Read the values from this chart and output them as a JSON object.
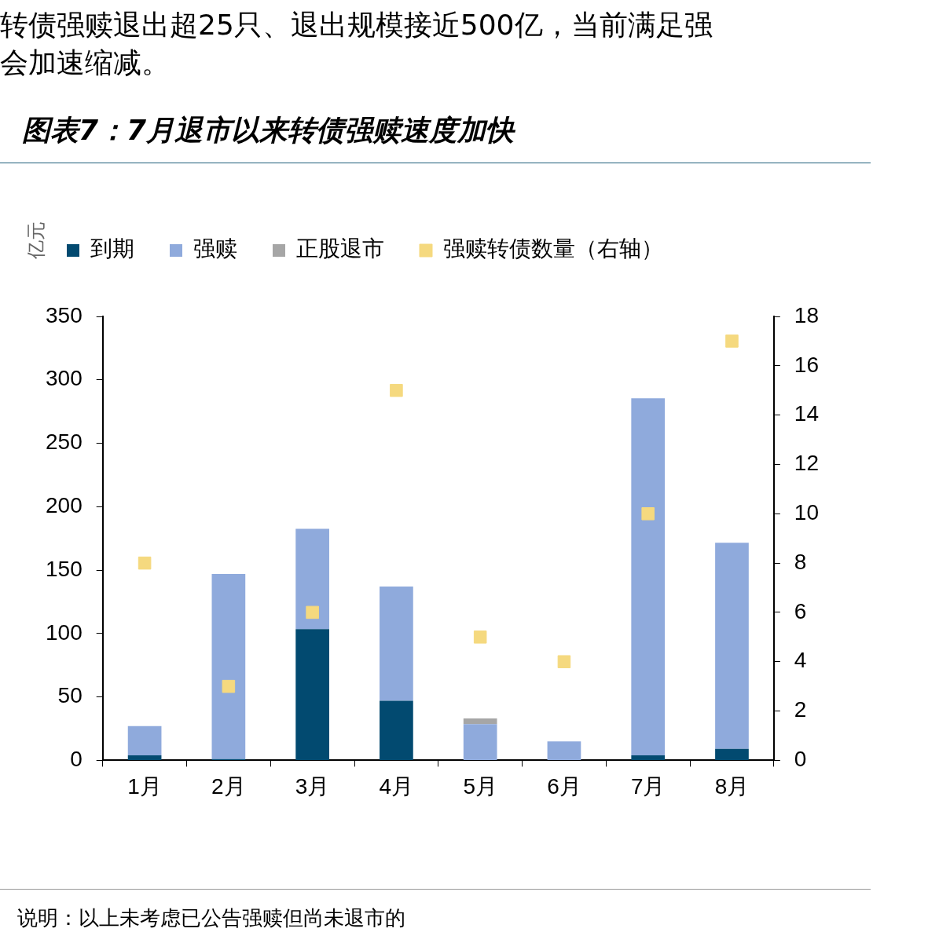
{
  "chart_data": {
    "type": "bar",
    "title": "图表7：7月退市以来转债强赎速度加快",
    "ylabel": "亿元",
    "categories": [
      "1月",
      "2月",
      "3月",
      "4月",
      "5月",
      "6月",
      "7月",
      "8月"
    ],
    "stacked": true,
    "legend": "top",
    "grid": false,
    "series": [
      {
        "name": "到期",
        "color": "#024a70",
        "values": [
          4,
          1,
          103.5,
          47,
          0,
          0,
          4,
          9
        ]
      },
      {
        "name": "强赎",
        "color": "#8faadc",
        "values": [
          23,
          146,
          79,
          90,
          28.5,
          15,
          281.5,
          162.5
        ]
      },
      {
        "name": "正股退市",
        "color": "#a6a6a6",
        "values": [
          0,
          0,
          0,
          0,
          4.5,
          0,
          0,
          0
        ]
      },
      {
        "name": "强赎转债数量（右轴）",
        "type": "scatter",
        "axis": "y2",
        "marker": "square",
        "color": "#f5d97f",
        "values": [
          8,
          3,
          6,
          15,
          5,
          4,
          10,
          17
        ]
      }
    ],
    "ylim": [
      0,
      350
    ],
    "yticks": [
      0,
      50,
      100,
      150,
      200,
      250,
      300,
      350
    ],
    "y2lim": [
      0,
      18
    ],
    "y2ticks": [
      0,
      2,
      4,
      6,
      8,
      10,
      12,
      14,
      16,
      18
    ],
    "annotations": [
      "转债强赎退出超25只、退出规模接近500亿，当前满足强",
      "会加速缩减。",
      "说明：以上未考虑已公告强赎但尚未退市的"
    ]
  }
}
